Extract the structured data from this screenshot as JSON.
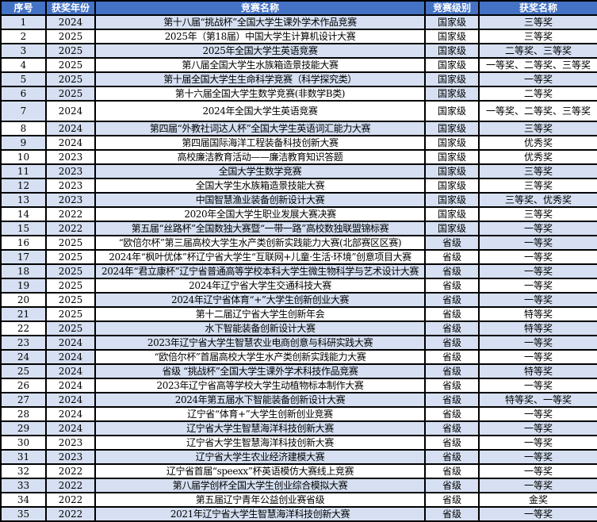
{
  "colors": {
    "header_bg": "#4472C4",
    "header_text": "#FFFFFF",
    "row_shade": "#D6E0F2",
    "row_bg": "#FFFFFF",
    "grid_border": "#000000"
  },
  "table": {
    "columns": [
      {
        "key": "index",
        "label": "序号"
      },
      {
        "key": "year",
        "label": "获奖年份"
      },
      {
        "key": "name",
        "label": "竞赛名称"
      },
      {
        "key": "level",
        "label": "竞赛级别"
      },
      {
        "key": "award",
        "label": "获奖名称"
      }
    ],
    "rows": [
      {
        "index": "1",
        "year": "2024",
        "name": "第十八届“挑战杯”全国大学生课外学术作品竞赛",
        "level": "国家级",
        "award": "三等奖",
        "shade": [
          1,
          1,
          1,
          1,
          1
        ]
      },
      {
        "index": "2",
        "year": "2025",
        "name": "2025年（第18届）中国大学生计算机设计大赛",
        "level": "国家级",
        "award": "三等奖",
        "shade": [
          0,
          0,
          0,
          0,
          0
        ]
      },
      {
        "index": "3",
        "year": "2025",
        "name": "2025年全国大学生英语竞赛",
        "level": "国家级",
        "award": "二等奖、三等奖",
        "shade": [
          1,
          1,
          1,
          1,
          1
        ]
      },
      {
        "index": "4",
        "year": "2025",
        "name": "第八届全国大学生水族箱造景技能大赛",
        "level": "国家级",
        "award": "一等奖、二等奖、三等奖",
        "shade": [
          0,
          0,
          0,
          0,
          0
        ]
      },
      {
        "index": "5",
        "year": "2025",
        "name": "第十届全国大学生生命科学竞赛（科学探究类）",
        "level": "国家级",
        "award": "一等奖",
        "shade": [
          1,
          1,
          1,
          1,
          1
        ]
      },
      {
        "index": "6",
        "year": "2025",
        "name": "第十六届全国大学生数学竞赛(非数学B类)",
        "level": "国家级",
        "award": "二等奖",
        "shade": [
          1,
          1,
          0,
          1,
          0
        ]
      },
      {
        "index": "7",
        "year": "2024",
        "name": "2024年全国大学生英语竞赛",
        "level": "国家级",
        "award": "一等奖、二等奖、三等奖",
        "shade": [
          1,
          0,
          0,
          0,
          0
        ]
      },
      {
        "index": "8",
        "year": "2024",
        "name": "第四届“外教社词达人杯”全国大学生英语词汇能力大赛",
        "level": "国家级",
        "award": "三等奖",
        "shade": [
          0,
          1,
          1,
          1,
          1
        ]
      },
      {
        "index": "9",
        "year": "2024",
        "name": "第四届国际海洋工程装备科技创新大赛",
        "level": "国家级",
        "award": "优秀奖",
        "shade": [
          1,
          0,
          0,
          0,
          0
        ]
      },
      {
        "index": "10",
        "year": "2023",
        "name": "高校廉洁教育活动——廉洁教育知识答题",
        "level": "国家级",
        "award": "优秀奖",
        "shade": [
          0,
          0,
          0,
          0,
          0
        ]
      },
      {
        "index": "11",
        "year": "2023",
        "name": "全国大学生数学竞赛",
        "level": "国家级",
        "award": "三等奖",
        "shade": [
          1,
          1,
          1,
          1,
          1
        ]
      },
      {
        "index": "12",
        "year": "2023",
        "name": "全国大学生水族箱造景技能大赛",
        "level": "国家级",
        "award": "三等奖",
        "shade": [
          1,
          0,
          0,
          0,
          0
        ]
      },
      {
        "index": "13",
        "year": "2023",
        "name": "中国智慧渔业装备创新设计大赛",
        "level": "国家级",
        "award": "三等奖、优秀奖",
        "shade": [
          1,
          1,
          1,
          1,
          1
        ]
      },
      {
        "index": "14",
        "year": "2022",
        "name": "2020年全国大学生职业发展大赛决赛",
        "level": "国家级",
        "award": "三等奖",
        "shade": [
          0,
          0,
          0,
          0,
          0
        ]
      },
      {
        "index": "15",
        "year": "2022",
        "name": "第五届“丝路杯”全国数独大赛暨“一带一路”高校数独联盟锦标赛",
        "level": "国家级",
        "award": "一等奖",
        "shade": [
          1,
          1,
          1,
          1,
          1
        ]
      },
      {
        "index": "16",
        "year": "2025",
        "name": "“欧倍尔杯”第三届高校大学生水产类创新实践能力大赛(北部赛区区赛)",
        "level": "省级",
        "award": "一等奖",
        "shade": [
          0,
          0,
          0,
          1,
          1
        ]
      },
      {
        "index": "17",
        "year": "2025",
        "name": "2024年“枫叶优体”杯辽宁省大学生“互联网+儿童·生活·环境”创意项目大赛",
        "level": "省级",
        "award": "一等奖",
        "shade": [
          1,
          0,
          0,
          0,
          0
        ]
      },
      {
        "index": "18",
        "year": "2025",
        "name": "2024年“君立康杯”辽宁省普通高等学校本科大学生微生物科学与艺术设计大赛",
        "level": "省级",
        "award": "一等奖",
        "shade": [
          1,
          1,
          1,
          1,
          1
        ]
      },
      {
        "index": "19",
        "year": "2025",
        "name": "2024年辽宁省大学生交通科技大赛",
        "level": "省级",
        "award": "一等奖",
        "shade": [
          1,
          0,
          0,
          0,
          0
        ]
      },
      {
        "index": "20",
        "year": "2025",
        "name": "2024年辽宁省体育“+”大学生创新创业大赛",
        "level": "省级",
        "award": "一等奖",
        "shade": [
          0,
          0,
          1,
          1,
          1
        ]
      },
      {
        "index": "21",
        "year": "2025",
        "name": "第十二届辽宁省大学生创新年会",
        "level": "省级",
        "award": "特等奖",
        "shade": [
          1,
          0,
          0,
          0,
          0
        ]
      },
      {
        "index": "22",
        "year": "2025",
        "name": "水下智能装备创新设计大赛",
        "level": "省级",
        "award": "特等奖",
        "shade": [
          0,
          1,
          1,
          1,
          1
        ]
      },
      {
        "index": "23",
        "year": "2024",
        "name": "2023年辽宁省大学生智慧农业电商创意与科研实践大赛",
        "level": "省级",
        "award": "一等奖",
        "shade": [
          1,
          1,
          1,
          1,
          1
        ]
      },
      {
        "index": "24",
        "year": "2024",
        "name": "“欧倍尔杯”首届高校大学生水产类创新实践能力大赛",
        "level": "省级",
        "award": "一等奖",
        "shade": [
          1,
          1,
          0,
          0,
          0
        ]
      },
      {
        "index": "25",
        "year": "2024",
        "name": "省级 “挑战杯”全国大学生课外学术科技作品竞赛",
        "level": "省级",
        "award": "特等奖",
        "shade": [
          1,
          1,
          1,
          1,
          1
        ]
      },
      {
        "index": "26",
        "year": "2024",
        "name": "2023年辽宁省高等学校大学生动植物标本制作大赛",
        "level": "省级",
        "award": "一等奖",
        "shade": [
          0,
          0,
          0,
          0,
          0
        ]
      },
      {
        "index": "27",
        "year": "2024",
        "name": "2024年第五届水下智能装备创新设计大赛",
        "level": "省级",
        "award": "特等奖、一等奖",
        "shade": [
          1,
          1,
          1,
          1,
          1
        ]
      },
      {
        "index": "28",
        "year": "2024",
        "name": "辽宁省“体育+”大学生创新创业竞赛",
        "level": "省级",
        "award": "一等奖",
        "shade": [
          0,
          0,
          0,
          0,
          0
        ]
      },
      {
        "index": "29",
        "year": "2024",
        "name": "辽宁省大学生智慧海洋科技创新大赛",
        "level": "省级",
        "award": "一等奖",
        "shade": [
          1,
          1,
          1,
          1,
          1
        ]
      },
      {
        "index": "30",
        "year": "2023",
        "name": "辽宁省大学生智慧海洋科技创新大赛",
        "level": "省级",
        "award": "一等奖",
        "shade": [
          0,
          0,
          0,
          0,
          0
        ]
      },
      {
        "index": "31",
        "year": "2023",
        "name": "辽宁省大学生农业经济建模大赛",
        "level": "省级",
        "award": "一等奖",
        "shade": [
          1,
          1,
          1,
          1,
          1
        ]
      },
      {
        "index": "32",
        "year": "2022",
        "name": "辽宁省首届“speexx”杯英语模仿大赛线上竞赛",
        "level": "省级",
        "award": "一等奖",
        "shade": [
          0,
          0,
          0,
          0,
          0
        ]
      },
      {
        "index": "33",
        "year": "2022",
        "name": "第八届学创杯全国大学生创业综合模拟大赛",
        "level": "省级",
        "award": "一等奖",
        "shade": [
          1,
          1,
          1,
          1,
          1
        ]
      },
      {
        "index": "34",
        "year": "2022",
        "name": "第五届辽宁青年公益创业赛省级",
        "level": "省级",
        "award": "金奖",
        "shade": [
          0,
          0,
          0,
          0,
          0
        ]
      },
      {
        "index": "35",
        "year": "2022",
        "name": "2021年辽宁省大学生智慧海洋科技创新大赛",
        "level": "省级",
        "award": "一等奖",
        "shade": [
          1,
          1,
          1,
          1,
          1
        ]
      }
    ]
  }
}
